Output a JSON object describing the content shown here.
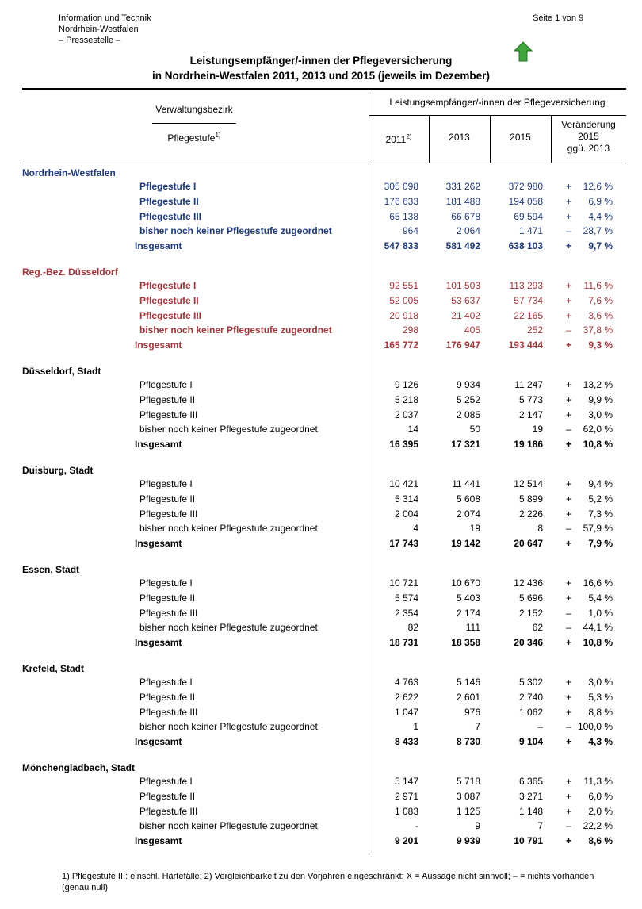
{
  "header": {
    "org": [
      "Information und Technik",
      "Nordrhein-Westfalen",
      "– Pressestelle –"
    ],
    "page": "Seite 1 von 9",
    "title": [
      "Leistungsempfänger/-innen der Pflegeversicherung",
      "in Nordrhein-Westfalen 2011, 2013 und 2015 (jeweils im Dezember)"
    ]
  },
  "table": {
    "head": {
      "district": "Verwaltungsbezirk",
      "level": "Pflegestufe",
      "level_note": "1)",
      "group": "Leistungsempfänger/-innen der Pflegeversicherung",
      "years": [
        {
          "label": "2011",
          "note": "2)"
        },
        {
          "label": "2013"
        },
        {
          "label": "2015"
        }
      ],
      "change": [
        "Veränderung",
        "2015",
        "ggü. 2013"
      ]
    },
    "sections": [
      {
        "name": "Nordrhein-Westfalen",
        "color": "#1f3a7a",
        "rows": [
          [
            "Pflegestufe I",
            "305 098",
            "331 262",
            "372 980",
            "+",
            "12,6 %"
          ],
          [
            "Pflegestufe II",
            "176 633",
            "181 488",
            "194 058",
            "+",
            "6,9 %"
          ],
          [
            "Pflegestufe III",
            "65 138",
            "66 678",
            "69 594",
            "+",
            "4,4 %"
          ],
          [
            "bisher noch keiner Pflegestufe zugeordnet",
            "964",
            "2 064",
            "1 471",
            "–",
            "28,7 %"
          ],
          [
            "Insgesamt",
            "547 833",
            "581 492",
            "638 103",
            "+",
            "9,7 %"
          ]
        ]
      },
      {
        "name": "Reg.-Bez. Düsseldorf",
        "color": "#a0353a",
        "rows": [
          [
            "Pflegestufe I",
            "92 551",
            "101 503",
            "113 293",
            "+",
            "11,6 %"
          ],
          [
            "Pflegestufe II",
            "52 005",
            "53 637",
            "57 734",
            "+",
            "7,6 %"
          ],
          [
            "Pflegestufe III",
            "20 918",
            "21 402",
            "22 165",
            "+",
            "3,6 %"
          ],
          [
            "bisher noch keiner Pflegestufe zugeordnet",
            "298",
            "405",
            "252",
            "–",
            "37,8 %"
          ],
          [
            "Insgesamt",
            "165 772",
            "176 947",
            "193 444",
            "+",
            "9,3 %"
          ]
        ]
      },
      {
        "name": "Düsseldorf, Stadt",
        "color": "#000000",
        "rows": [
          [
            "Pflegestufe I",
            "9 126",
            "9 934",
            "11 247",
            "+",
            "13,2 %"
          ],
          [
            "Pflegestufe II",
            "5 218",
            "5 252",
            "5 773",
            "+",
            "9,9 %"
          ],
          [
            "Pflegestufe III",
            "2 037",
            "2 085",
            "2 147",
            "+",
            "3,0 %"
          ],
          [
            "bisher noch keiner Pflegestufe zugeordnet",
            "14",
            "50",
            "19",
            "–",
            "62,0 %"
          ],
          [
            "Insgesamt",
            "16 395",
            "17 321",
            "19 186",
            "+",
            "10,8 %"
          ]
        ]
      },
      {
        "name": "Duisburg, Stadt",
        "color": "#000000",
        "rows": [
          [
            "Pflegestufe I",
            "10 421",
            "11 441",
            "12 514",
            "+",
            "9,4 %"
          ],
          [
            "Pflegestufe II",
            "5 314",
            "5 608",
            "5 899",
            "+",
            "5,2 %"
          ],
          [
            "Pflegestufe III",
            "2 004",
            "2 074",
            "2 226",
            "+",
            "7,3 %"
          ],
          [
            "bisher noch keiner Pflegestufe zugeordnet",
            "4",
            "19",
            "8",
            "–",
            "57,9 %"
          ],
          [
            "Insgesamt",
            "17 743",
            "19 142",
            "20 647",
            "+",
            "7,9 %"
          ]
        ]
      },
      {
        "name": "Essen, Stadt",
        "color": "#000000",
        "rows": [
          [
            "Pflegestufe I",
            "10 721",
            "10 670",
            "12 436",
            "+",
            "16,6 %"
          ],
          [
            "Pflegestufe II",
            "5 574",
            "5 403",
            "5 696",
            "+",
            "5,4 %"
          ],
          [
            "Pflegestufe III",
            "2 354",
            "2 174",
            "2 152",
            "–",
            "1,0 %"
          ],
          [
            "bisher noch keiner Pflegestufe zugeordnet",
            "82",
            "111",
            "62",
            "–",
            "44,1 %"
          ],
          [
            "Insgesamt",
            "18 731",
            "18 358",
            "20 346",
            "+",
            "10,8 %"
          ]
        ]
      },
      {
        "name": "Krefeld, Stadt",
        "color": "#000000",
        "rows": [
          [
            "Pflegestufe I",
            "4 763",
            "5 146",
            "5 302",
            "+",
            "3,0 %"
          ],
          [
            "Pflegestufe II",
            "2 622",
            "2 601",
            "2 740",
            "+",
            "5,3 %"
          ],
          [
            "Pflegestufe III",
            "1 047",
            "976",
            "1 062",
            "+",
            "8,8 %"
          ],
          [
            "bisher noch keiner Pflegestufe zugeordnet",
            "1",
            "7",
            "–",
            "–",
            "100,0 %"
          ],
          [
            "Insgesamt",
            "8 433",
            "8 730",
            "9 104",
            "+",
            "4,3 %"
          ]
        ]
      },
      {
        "name": "Mönchengladbach, Stadt",
        "color": "#000000",
        "rows": [
          [
            "Pflegestufe I",
            "5 147",
            "5 718",
            "6 365",
            "+",
            "11,3 %"
          ],
          [
            "Pflegestufe II",
            "2 971",
            "3 087",
            "3 271",
            "+",
            "6,0 %"
          ],
          [
            "Pflegestufe III",
            "1 083",
            "1 125",
            "1 148",
            "+",
            "2,0 %"
          ],
          [
            "bisher noch keiner Pflegestufe zugeordnet",
            "-",
            "9",
            "7",
            "–",
            "22,2 %"
          ],
          [
            "Insgesamt",
            "9 201",
            "9 939",
            "10 791",
            "+",
            "8,6 %"
          ]
        ]
      }
    ]
  },
  "footnote": "1) Pflegestufe III: einschl. Härtefälle; 2) Vergleichbarkeit zu den Vorjahren eingeschränkt; X = Aussage nicht sinnvoll; – = nichts vorhanden (genau null)"
}
